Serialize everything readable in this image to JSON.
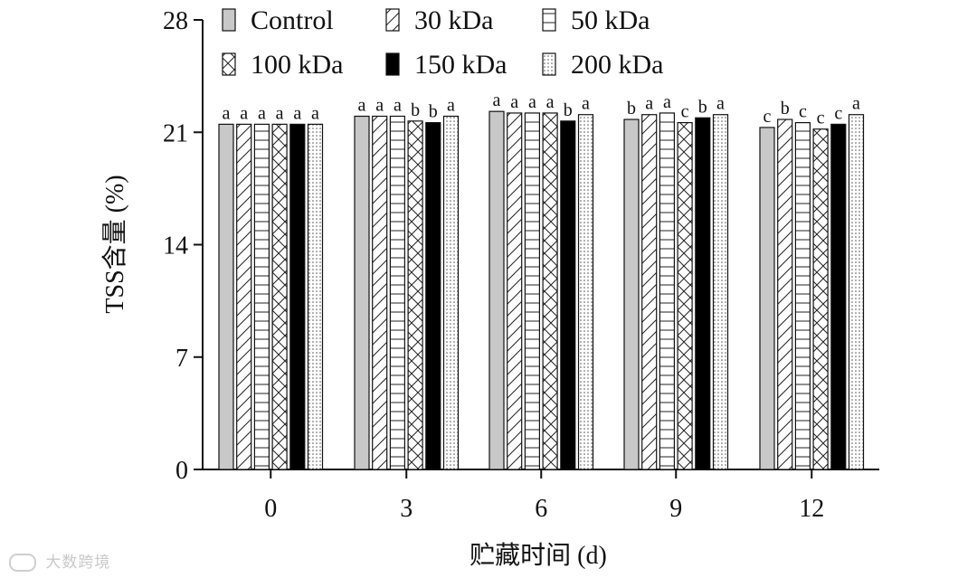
{
  "chart_data": {
    "type": "bar",
    "title": "",
    "xlabel": "贮藏时间 (d)",
    "ylabel": "TSS含量 (%)",
    "ylim": [
      0,
      28
    ],
    "yticks": [
      "0",
      "7",
      "14",
      "21",
      "28"
    ],
    "categories": [
      "0",
      "3",
      "6",
      "9",
      "12"
    ],
    "legend_position": "top",
    "series": [
      {
        "name": "Control",
        "pattern": "gray",
        "values": [
          21.5,
          22.0,
          22.3,
          21.8,
          21.3
        ],
        "letters": [
          "a",
          "a",
          "a",
          "b",
          "c"
        ]
      },
      {
        "name": "30 kDa",
        "pattern": "diagonal",
        "values": [
          21.5,
          22.0,
          22.2,
          22.1,
          21.8
        ],
        "letters": [
          "a",
          "a",
          "a",
          "a",
          "b"
        ]
      },
      {
        "name": "50 kDa",
        "pattern": "horizontal",
        "values": [
          21.5,
          22.0,
          22.2,
          22.2,
          21.6
        ],
        "letters": [
          "a",
          "a",
          "a",
          "a",
          "c"
        ]
      },
      {
        "name": "100 kDa",
        "pattern": "crosshatch",
        "values": [
          21.5,
          21.7,
          22.2,
          21.6,
          21.2
        ],
        "letters": [
          "a",
          "b",
          "a",
          "c",
          "c"
        ]
      },
      {
        "name": "150 kDa",
        "pattern": "black",
        "values": [
          21.5,
          21.6,
          21.7,
          21.9,
          21.5
        ],
        "letters": [
          "a",
          "b",
          "b",
          "b",
          "c"
        ]
      },
      {
        "name": "200 kDa",
        "pattern": "dotted",
        "values": [
          21.5,
          22.0,
          22.1,
          22.1,
          22.1
        ],
        "letters": [
          "a",
          "a",
          "a",
          "a",
          "a"
        ]
      }
    ]
  },
  "watermark": {
    "text": "大数跨境",
    "logo_icon": "cloud-logo-icon"
  }
}
